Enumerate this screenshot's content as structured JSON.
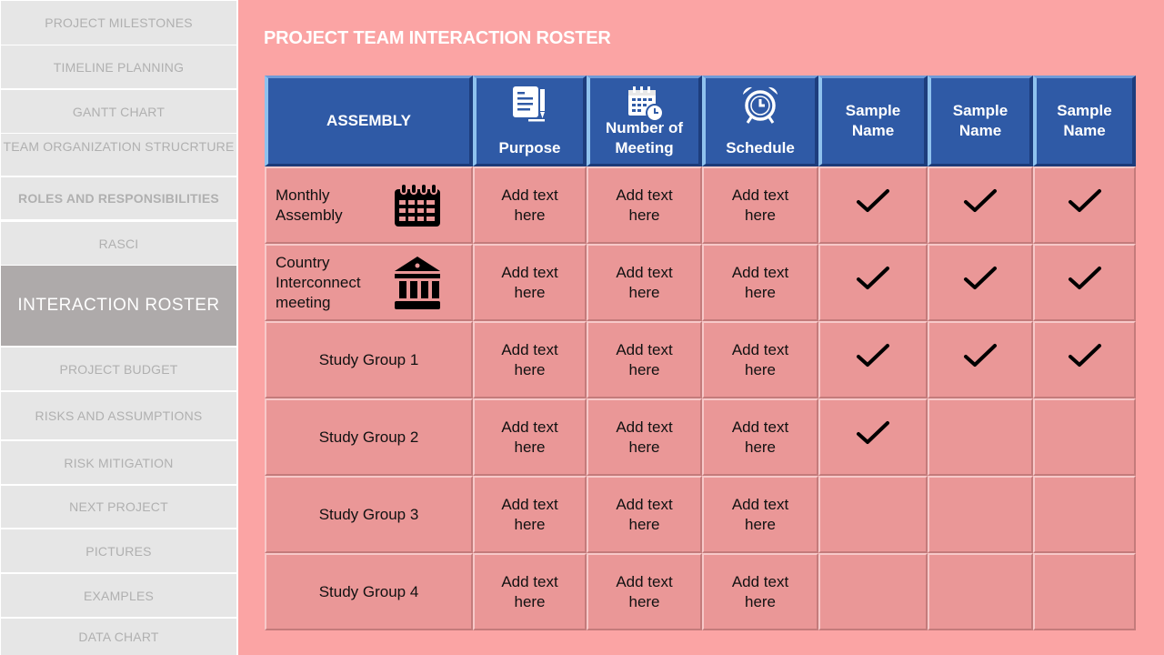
{
  "sidebar": {
    "items": [
      {
        "label": "PROJECT MILESTONES"
      },
      {
        "label": "TIMELINE PLANNING"
      },
      {
        "label": "GANTT CHART"
      },
      {
        "label": "TEAM ORGANIZATION STRUCRTURE"
      },
      {
        "label": "ROLES AND RESPONSIBILITIES"
      },
      {
        "label": "RASCI"
      },
      {
        "label": "INTERACTION  ROSTER"
      },
      {
        "label": "PROJECT BUDGET"
      },
      {
        "label": "RISKS AND ASSUMPTIONS"
      },
      {
        "label": "RISK MITIGATION"
      },
      {
        "label": "NEXT PROJECT"
      },
      {
        "label": "PICTURES"
      },
      {
        "label": "EXAMPLES"
      },
      {
        "label": "DATA CHART"
      }
    ],
    "active_index": 6
  },
  "page": {
    "title": "PROJECT TEAM INTERACTION ROSTER"
  },
  "table": {
    "headers": [
      {
        "label": "ASSEMBLY",
        "icon": "none"
      },
      {
        "label": "Purpose",
        "icon": "document-edit-icon"
      },
      {
        "label": "Number of Meeting",
        "icon": "calendar-clock-icon"
      },
      {
        "label": "Schedule",
        "icon": "alarm-clock-icon"
      },
      {
        "label": "Sample Name",
        "icon": "none"
      },
      {
        "label": "Sample Name",
        "icon": "none"
      },
      {
        "label": "Sample Name",
        "icon": "none"
      }
    ],
    "rows": [
      {
        "name": "Monthly Assembly",
        "icon": "calendar-icon",
        "purpose": "Add text here",
        "meetings": "Add text here",
        "schedule": "Add text here",
        "checks": [
          true,
          true,
          true
        ]
      },
      {
        "name": "Country Interconnect meeting",
        "icon": "bank-building-icon",
        "purpose": "Add text here",
        "meetings": "Add text here",
        "schedule": "Add text here",
        "checks": [
          true,
          true,
          true
        ]
      },
      {
        "name": "Study Group 1",
        "icon": "none",
        "purpose": "Add text here",
        "meetings": "Add text here",
        "schedule": "Add text here",
        "checks": [
          true,
          true,
          true
        ]
      },
      {
        "name": "Study Group 2",
        "icon": "none",
        "purpose": "Add text here",
        "meetings": "Add text here",
        "schedule": "Add text here",
        "checks": [
          true,
          false,
          false
        ]
      },
      {
        "name": "Study Group 3",
        "icon": "none",
        "purpose": "Add text here",
        "meetings": "Add text here",
        "schedule": "Add text here",
        "checks": [
          false,
          false,
          false
        ]
      },
      {
        "name": "Study Group 4",
        "icon": "none",
        "purpose": "Add text here",
        "meetings": "Add text here",
        "schedule": "Add text here",
        "checks": [
          false,
          false,
          false
        ]
      }
    ]
  },
  "colors": {
    "background": "#fba4a4",
    "header_blue": "#2f5aa6",
    "cell_pink": "#ea9797",
    "sidebar_item": "#e6e6e6",
    "sidebar_active": "#aeaaaa"
  }
}
